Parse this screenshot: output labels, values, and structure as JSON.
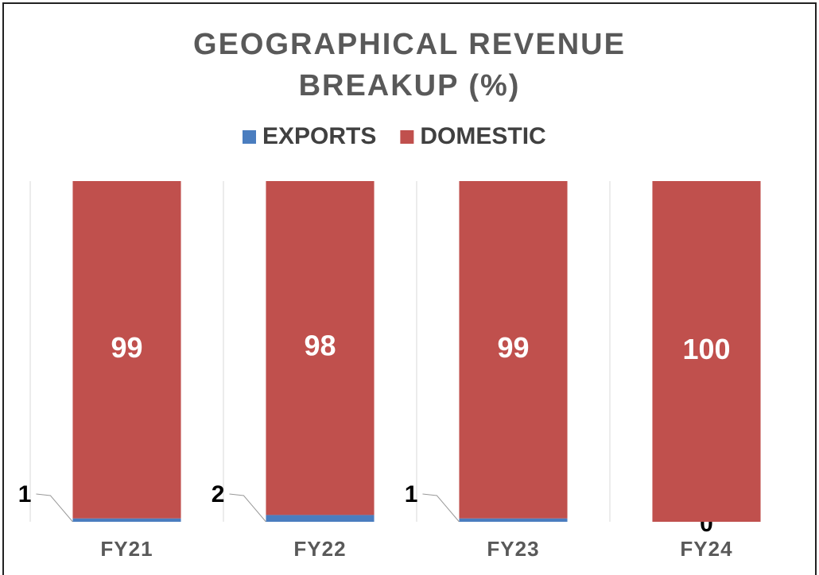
{
  "chart_data": {
    "type": "stacked_bar",
    "title": "GEOGRAPHICAL REVENUE BREAKUP (%)",
    "categories": [
      "FY21",
      "FY22",
      "FY23",
      "FY24"
    ],
    "series": [
      {
        "name": "EXPORTS",
        "color": "#4a7dbf",
        "values": [
          1,
          2,
          1,
          0
        ]
      },
      {
        "name": "DOMESTIC",
        "color": "#c0504d",
        "values": [
          99,
          98,
          99,
          100
        ]
      }
    ],
    "ylim": [
      0,
      100
    ]
  }
}
